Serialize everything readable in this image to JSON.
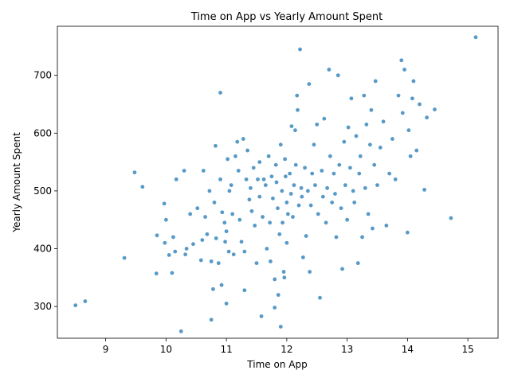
{
  "chart_data": {
    "type": "scatter",
    "title": "Time on App vs Yearly Amount Spent",
    "xlabel": "Time on App",
    "ylabel": "Yearly Amount Spent",
    "xlim": [
      8.2,
      15.5
    ],
    "ylim": [
      245,
      785
    ],
    "xticks": [
      9,
      10,
      11,
      12,
      13,
      14,
      15
    ],
    "yticks": [
      300,
      400,
      500,
      600,
      700
    ],
    "xtick_labels": [
      "9",
      "10",
      "11",
      "12",
      "13",
      "14",
      "15"
    ],
    "ytick_labels": [
      "300",
      "400",
      "500",
      "600",
      "700"
    ],
    "grid": false,
    "legend": "none",
    "marker_color": "#1f77b4",
    "points": [
      [
        8.5,
        302
      ],
      [
        8.66,
        309
      ],
      [
        9.31,
        384
      ],
      [
        9.48,
        532
      ],
      [
        9.61,
        507
      ],
      [
        9.84,
        357
      ],
      [
        9.85,
        423
      ],
      [
        9.97,
        478
      ],
      [
        9.98,
        410
      ],
      [
        10.0,
        450
      ],
      [
        10.05,
        389
      ],
      [
        10.1,
        358
      ],
      [
        10.12,
        420
      ],
      [
        10.15,
        395
      ],
      [
        10.17,
        520
      ],
      [
        10.25,
        257
      ],
      [
        10.3,
        535
      ],
      [
        10.32,
        390
      ],
      [
        10.34,
        400
      ],
      [
        10.4,
        460
      ],
      [
        10.45,
        408
      ],
      [
        10.52,
        470
      ],
      [
        10.58,
        380
      ],
      [
        10.6,
        415
      ],
      [
        10.62,
        535
      ],
      [
        10.65,
        455
      ],
      [
        10.68,
        425
      ],
      [
        10.72,
        500
      ],
      [
        10.75,
        378
      ],
      [
        10.75,
        277
      ],
      [
        10.78,
        330
      ],
      [
        10.8,
        480
      ],
      [
        10.82,
        578
      ],
      [
        10.83,
        418
      ],
      [
        10.87,
        375
      ],
      [
        10.9,
        520
      ],
      [
        10.9,
        670
      ],
      [
        10.92,
        337
      ],
      [
        10.93,
        463
      ],
      [
        10.97,
        445
      ],
      [
        10.98,
        412
      ],
      [
        11.0,
        305
      ],
      [
        11.0,
        430
      ],
      [
        11.02,
        555
      ],
      [
        11.04,
        395
      ],
      [
        11.05,
        500
      ],
      [
        11.08,
        510
      ],
      [
        11.1,
        460
      ],
      [
        11.12,
        390
      ],
      [
        11.15,
        560
      ],
      [
        11.18,
        585
      ],
      [
        11.2,
        535
      ],
      [
        11.22,
        450
      ],
      [
        11.25,
        412
      ],
      [
        11.28,
        590
      ],
      [
        11.3,
        395
      ],
      [
        11.3,
        328
      ],
      [
        11.33,
        520
      ],
      [
        11.35,
        570
      ],
      [
        11.38,
        485
      ],
      [
        11.4,
        505
      ],
      [
        11.42,
        465
      ],
      [
        11.45,
        540
      ],
      [
        11.47,
        440
      ],
      [
        11.5,
        375
      ],
      [
        11.52,
        520
      ],
      [
        11.55,
        550
      ],
      [
        11.55,
        490
      ],
      [
        11.58,
        283
      ],
      [
        11.6,
        455
      ],
      [
        11.62,
        520
      ],
      [
        11.65,
        510
      ],
      [
        11.67,
        400
      ],
      [
        11.7,
        560
      ],
      [
        11.72,
        445
      ],
      [
        11.73,
        378
      ],
      [
        11.75,
        525
      ],
      [
        11.77,
        487
      ],
      [
        11.8,
        298
      ],
      [
        11.8,
        347
      ],
      [
        11.82,
        545
      ],
      [
        11.83,
        515
      ],
      [
        11.85,
        470
      ],
      [
        11.86,
        320
      ],
      [
        11.88,
        425
      ],
      [
        11.9,
        580
      ],
      [
        11.9,
        265
      ],
      [
        11.92,
        500
      ],
      [
        11.93,
        445
      ],
      [
        11.95,
        360
      ],
      [
        11.96,
        350
      ],
      [
        11.97,
        555
      ],
      [
        11.98,
        525
      ],
      [
        12.0,
        480
      ],
      [
        12.0,
        410
      ],
      [
        12.02,
        460
      ],
      [
        12.05,
        530
      ],
      [
        12.07,
        495
      ],
      [
        12.08,
        612
      ],
      [
        12.1,
        455
      ],
      [
        12.12,
        510
      ],
      [
        12.14,
        605
      ],
      [
        12.15,
        545
      ],
      [
        12.17,
        665
      ],
      [
        12.18,
        640
      ],
      [
        12.2,
        475
      ],
      [
        12.22,
        745
      ],
      [
        12.24,
        505
      ],
      [
        12.25,
        490
      ],
      [
        12.27,
        385
      ],
      [
        12.3,
        540
      ],
      [
        12.32,
        422
      ],
      [
        12.35,
        500
      ],
      [
        12.37,
        685
      ],
      [
        12.38,
        360
      ],
      [
        12.4,
        475
      ],
      [
        12.42,
        530
      ],
      [
        12.45,
        580
      ],
      [
        12.47,
        510
      ],
      [
        12.5,
        615
      ],
      [
        12.52,
        460
      ],
      [
        12.55,
        315
      ],
      [
        12.58,
        535
      ],
      [
        12.6,
        490
      ],
      [
        12.62,
        625
      ],
      [
        12.65,
        445
      ],
      [
        12.67,
        505
      ],
      [
        12.7,
        710
      ],
      [
        12.72,
        560
      ],
      [
        12.75,
        480
      ],
      [
        12.78,
        530
      ],
      [
        12.8,
        495
      ],
      [
        12.82,
        420
      ],
      [
        12.85,
        700
      ],
      [
        12.87,
        545
      ],
      [
        12.9,
        470
      ],
      [
        12.92,
        365
      ],
      [
        12.95,
        585
      ],
      [
        12.97,
        510
      ],
      [
        13.0,
        450
      ],
      [
        13.02,
        610
      ],
      [
        13.05,
        540
      ],
      [
        13.07,
        660
      ],
      [
        13.1,
        500
      ],
      [
        13.12,
        480
      ],
      [
        13.15,
        595
      ],
      [
        13.18,
        375
      ],
      [
        13.2,
        530
      ],
      [
        13.22,
        560
      ],
      [
        13.25,
        420
      ],
      [
        13.28,
        665
      ],
      [
        13.3,
        505
      ],
      [
        13.32,
        615
      ],
      [
        13.35,
        460
      ],
      [
        13.38,
        580
      ],
      [
        13.4,
        640
      ],
      [
        13.42,
        435
      ],
      [
        13.45,
        545
      ],
      [
        13.47,
        690
      ],
      [
        13.5,
        510
      ],
      [
        13.55,
        575
      ],
      [
        13.6,
        620
      ],
      [
        13.65,
        440
      ],
      [
        13.7,
        530
      ],
      [
        13.75,
        590
      ],
      [
        13.8,
        520
      ],
      [
        13.85,
        665
      ],
      [
        13.9,
        726
      ],
      [
        13.92,
        635
      ],
      [
        13.95,
        710
      ],
      [
        14.0,
        428
      ],
      [
        14.02,
        605
      ],
      [
        14.05,
        560
      ],
      [
        14.08,
        660
      ],
      [
        14.1,
        690
      ],
      [
        14.15,
        570
      ],
      [
        14.2,
        650
      ],
      [
        14.28,
        502
      ],
      [
        14.32,
        627
      ],
      [
        14.45,
        641
      ],
      [
        14.72,
        453
      ],
      [
        15.13,
        766
      ]
    ]
  }
}
